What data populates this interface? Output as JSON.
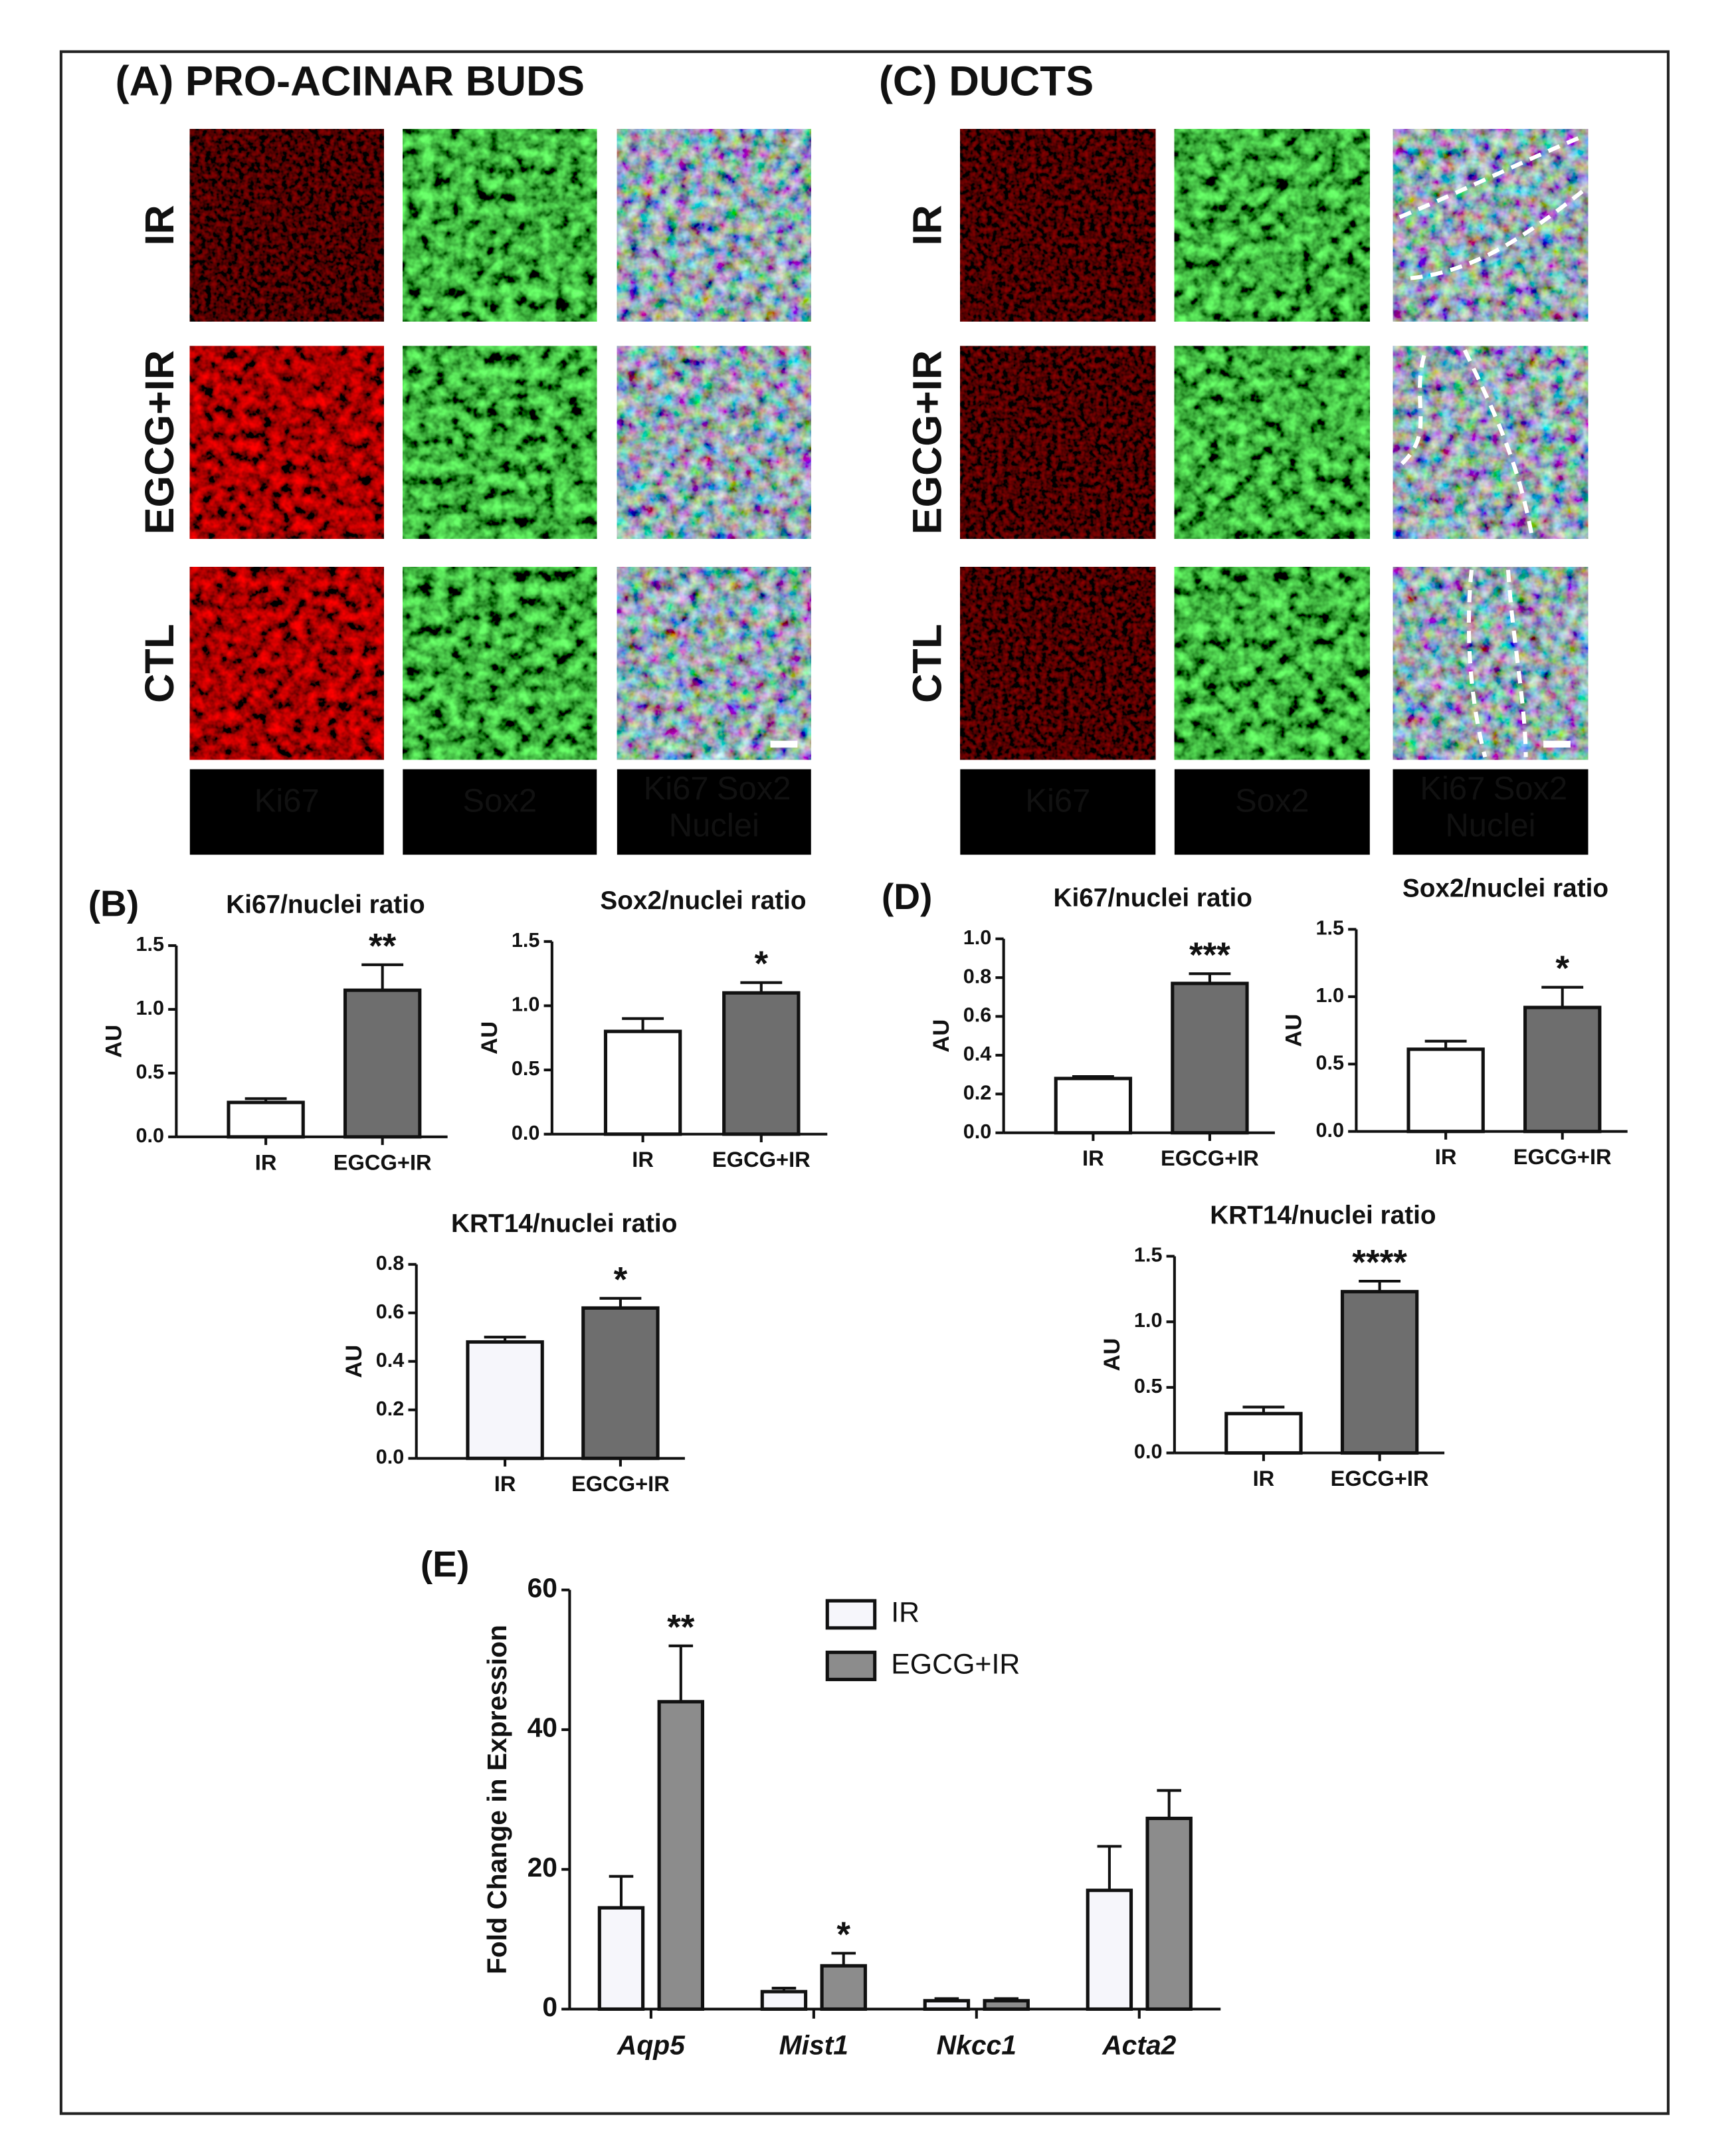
{
  "image_panels": [
    {
      "title": "(A) PRO-ACINAR BUDS",
      "rows": [
        "IR",
        "EGCG+IR",
        "CTL"
      ],
      "columns": [
        "Ki67",
        "Sox2",
        [
          "Ki67",
          "Sox2",
          "Nuclei"
        ]
      ]
    },
    {
      "title": "(C) DUCTS",
      "rows": [
        "IR",
        "EGCG+IR",
        "CTL"
      ],
      "columns": [
        "Ki67",
        "Sox2",
        [
          "Ki67",
          "Sox2",
          "Nuclei"
        ]
      ]
    }
  ],
  "chart_data": [
    {
      "type": "bar",
      "panel_label": "(B)",
      "title": "Ki67/nuclei ratio",
      "ylabel": "AU",
      "categories": [
        "IR",
        "EGCG+IR"
      ],
      "values": [
        0.27,
        1.15
      ],
      "errors": [
        0.03,
        0.2
      ],
      "annotations": [
        null,
        "**"
      ],
      "colors": [
        "#ffffff",
        "#6e6e6e"
      ],
      "ylim": [
        0,
        1.5
      ],
      "yticks": [
        {
          "value": 0,
          "label": "0.0"
        },
        0.5,
        {
          "value": 1,
          "label": "1.0"
        },
        1.5
      ]
    },
    {
      "type": "bar",
      "title": "Sox2/nuclei ratio",
      "ylabel": "AU",
      "categories": [
        "IR",
        "EGCG+IR"
      ],
      "values": [
        0.8,
        1.1
      ],
      "errors": [
        0.1,
        0.08
      ],
      "annotations": [
        null,
        "*"
      ],
      "colors": [
        "#ffffff",
        "#6e6e6e"
      ],
      "ylim": [
        0,
        1.5
      ],
      "yticks": [
        {
          "value": 0,
          "label": "0.0"
        },
        0.5,
        {
          "value": 1,
          "label": "1.0"
        },
        1.5
      ]
    },
    {
      "type": "bar",
      "title": "KRT14/nuclei ratio",
      "ylabel": "AU",
      "categories": [
        "IR",
        "EGCG+IR"
      ],
      "values": [
        0.48,
        0.62
      ],
      "errors": [
        0.02,
        0.04
      ],
      "annotations": [
        null,
        "*"
      ],
      "colors": [
        "#f6f6fb",
        "#6e6e6e"
      ],
      "ylim": [
        0,
        0.8
      ],
      "yticks": [
        {
          "value": 0,
          "label": "0.0"
        },
        0.2,
        0.4,
        0.6,
        0.8
      ]
    },
    {
      "type": "bar",
      "panel_label": "(D)",
      "title": "Ki67/nuclei ratio",
      "ylabel": "AU",
      "categories": [
        "IR",
        "EGCG+IR"
      ],
      "values": [
        0.28,
        0.77
      ],
      "errors": [
        0.01,
        0.05
      ],
      "annotations": [
        null,
        "***"
      ],
      "colors": [
        "#ffffff",
        "#6e6e6e"
      ],
      "ylim": [
        0,
        1
      ],
      "yticks": [
        {
          "value": 0,
          "label": "0.0"
        },
        0.2,
        0.4,
        0.6,
        0.8,
        {
          "value": 1,
          "label": "1.0"
        }
      ]
    },
    {
      "type": "bar",
      "title": "Sox2/nuclei ratio",
      "ylabel": "AU",
      "categories": [
        "IR",
        "EGCG+IR"
      ],
      "values": [
        0.61,
        0.92
      ],
      "errors": [
        0.06,
        0.15
      ],
      "annotations": [
        null,
        "*"
      ],
      "colors": [
        "#ffffff",
        "#6e6e6e"
      ],
      "ylim": [
        0,
        1.5
      ],
      "yticks": [
        {
          "value": 0,
          "label": "0.0"
        },
        0.5,
        {
          "value": 1,
          "label": "1.0"
        },
        1.5
      ]
    },
    {
      "type": "bar",
      "title": "KRT14/nuclei ratio",
      "ylabel": "AU",
      "categories": [
        "IR",
        "EGCG+IR"
      ],
      "values": [
        0.3,
        1.23
      ],
      "errors": [
        0.05,
        0.08
      ],
      "annotations": [
        null,
        "****"
      ],
      "colors": [
        "#ffffff",
        "#6e6e6e"
      ],
      "ylim": [
        0,
        1.5
      ],
      "yticks": [
        {
          "value": 0,
          "label": "0.0"
        },
        0.5,
        {
          "value": 1,
          "label": "1.0"
        },
        1.5
      ]
    },
    {
      "type": "grouped_bar",
      "panel_label": "(E)",
      "ylabel": "Fold Change in Expression",
      "categories": [
        "Aqp5",
        "Mist1",
        "Nkcc1",
        "Acta2"
      ],
      "series": [
        {
          "name": "IR",
          "color": "#f6f6fb",
          "values": [
            14.5,
            2.5,
            1.2,
            17
          ],
          "errors": [
            4.5,
            0.5,
            0.3,
            6.3
          ],
          "annotations": [
            null,
            null,
            null,
            null
          ]
        },
        {
          "name": "EGCG+IR",
          "color": "#8c8c8c",
          "values": [
            44,
            6.2,
            1.2,
            27.3
          ],
          "errors": [
            8,
            1.8,
            0.3,
            4
          ],
          "annotations": [
            "**",
            "*",
            null,
            null
          ]
        }
      ],
      "ylim": [
        0,
        60
      ],
      "yticks": [
        0,
        20,
        40,
        60
      ]
    }
  ]
}
